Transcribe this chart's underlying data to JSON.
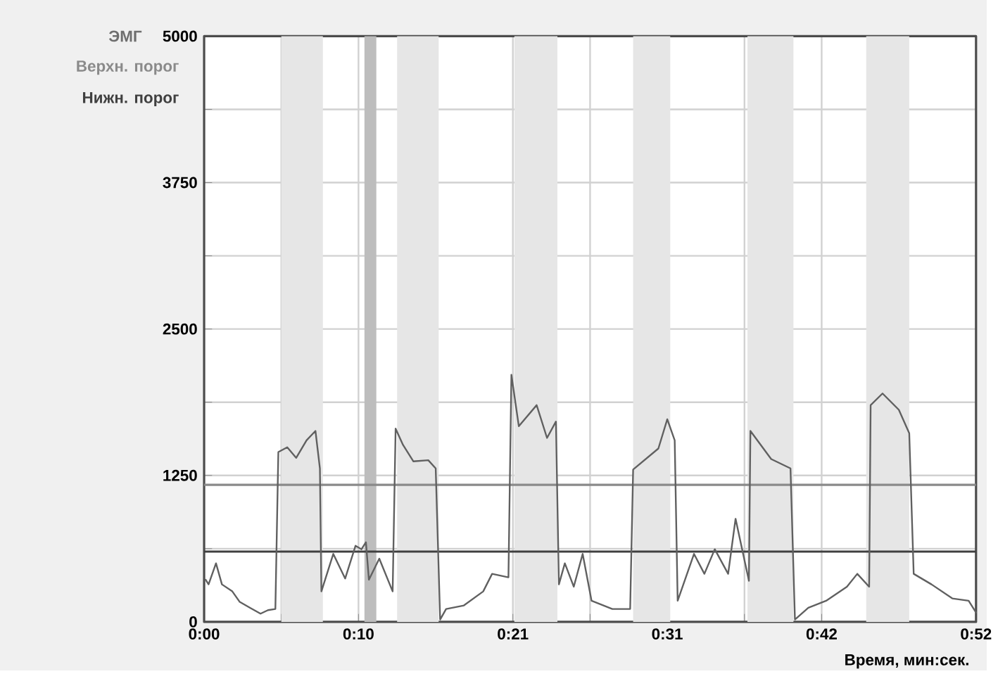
{
  "chart_data": {
    "type": "line",
    "ylabel": "ЭМГ",
    "xlabel": "Время, мин:сек.",
    "xlim": [
      0,
      52
    ],
    "ylim": [
      0,
      5000
    ],
    "xticks": [
      {
        "value": 0,
        "label": "0:00"
      },
      {
        "value": 5.2,
        "label": null
      },
      {
        "value": 10.4,
        "label": "0:10"
      },
      {
        "value": 15.6,
        "label": null
      },
      {
        "value": 20.8,
        "label": "0:21"
      },
      {
        "value": 26,
        "label": null
      },
      {
        "value": 31.2,
        "label": "0:31"
      },
      {
        "value": 36.4,
        "label": null
      },
      {
        "value": 41.6,
        "label": "0:42"
      },
      {
        "value": 46.8,
        "label": null
      },
      {
        "value": 52,
        "label": "0:52"
      }
    ],
    "yticks": [
      0,
      {
        "value": 625,
        "label": null
      },
      1250,
      {
        "value": 1875,
        "label": null
      },
      2500,
      {
        "value": 3125,
        "label": null
      },
      3750,
      {
        "value": 4375,
        "label": null
      },
      5000
    ],
    "grid": true,
    "marker": "none",
    "line_style": "solid",
    "series": [
      {
        "color": "#606060",
        "x": [
          0.1,
          0.3,
          0.8,
          1.2,
          1.9,
          2.4,
          3.1,
          3.8,
          4.3,
          4.8,
          5.0,
          5.6,
          6.2,
          6.9,
          7.5,
          7.8,
          7.9,
          8.7,
          9.5,
          10.2,
          10.6,
          10.9,
          11.1,
          11.8,
          12.7,
          12.9,
          13.4,
          14.1,
          15.1,
          15.6,
          15.9,
          16.3,
          17.5,
          18.8,
          19.4,
          20.5,
          20.7,
          21.2,
          22.4,
          23.1,
          23.7,
          23.9,
          24.3,
          24.9,
          25.5,
          26.1,
          27.5,
          28.7,
          28.9,
          30.6,
          31.2,
          31.7,
          31.9,
          33.0,
          33.7,
          34.4,
          35.3,
          35.8,
          36.7,
          36.8,
          38.2,
          39.5,
          39.8,
          40.7,
          41.9,
          43.3,
          44.0,
          44.8,
          44.9,
          45.7,
          46.8,
          47.5,
          47.8,
          49.0,
          50.4,
          51.5,
          52.0
        ],
        "values": [
          360,
          320,
          500,
          320,
          260,
          170,
          120,
          70,
          100,
          110,
          1450,
          1490,
          1400,
          1550,
          1630,
          1310,
          260,
          580,
          370,
          650,
          620,
          680,
          360,
          540,
          260,
          1650,
          1510,
          1370,
          1380,
          1310,
          20,
          110,
          140,
          260,
          410,
          380,
          2110,
          1670,
          1850,
          1570,
          1710,
          320,
          500,
          300,
          580,
          180,
          110,
          110,
          1300,
          1480,
          1730,
          1550,
          180,
          580,
          410,
          620,
          410,
          880,
          350,
          1630,
          1390,
          1310,
          20,
          120,
          180,
          300,
          410,
          300,
          1850,
          1950,
          1810,
          1610,
          410,
          320,
          200,
          180,
          80
        ]
      }
    ],
    "ref_lines": [
      {
        "axis": "y",
        "value": 1170,
        "label": "Верхн. порог",
        "color": "#8a8a8a"
      },
      {
        "axis": "y",
        "value": 600,
        "label": "Нижн. порог",
        "color": "#404040"
      }
    ],
    "bands": [
      {
        "axis": "x",
        "from": 5.2,
        "to": 8.0,
        "color": "#e6e6e6"
      },
      {
        "axis": "x",
        "from": 10.8,
        "to": 11.6,
        "color": "#bdbdbd"
      },
      {
        "axis": "x",
        "from": 13.0,
        "to": 15.8,
        "color": "#e6e6e6"
      },
      {
        "axis": "x",
        "from": 20.9,
        "to": 23.8,
        "color": "#e6e6e6"
      },
      {
        "axis": "x",
        "from": 28.9,
        "to": 31.4,
        "color": "#e6e6e6"
      },
      {
        "axis": "x",
        "from": 36.6,
        "to": 39.7,
        "color": "#e6e6e6"
      },
      {
        "axis": "x",
        "from": 44.6,
        "to": 47.5,
        "color": "#e6e6e6"
      }
    ]
  }
}
